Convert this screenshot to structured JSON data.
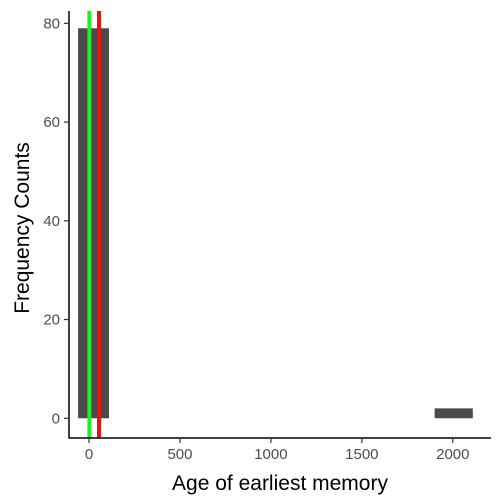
{
  "chart_data": {
    "type": "bar",
    "title": "",
    "xlabel": "Age of earliest memory",
    "ylabel": "Frequency Counts",
    "xlim": [
      -110,
      2210
    ],
    "ylim": [
      -4,
      82.5
    ],
    "x_ticks": [
      0,
      500,
      1000,
      1500,
      2000
    ],
    "y_ticks": [
      0,
      20,
      40,
      60,
      80
    ],
    "grid": false,
    "bins": [
      {
        "x0": -60,
        "x1": 110,
        "count": 79
      },
      {
        "x0": 1900,
        "x1": 2110,
        "count": 2
      }
    ],
    "vlines": [
      {
        "name": "green",
        "x": 2,
        "color": "#22ee22"
      },
      {
        "name": "red",
        "x": 55,
        "color": "#ee1111"
      }
    ],
    "bar_color": "#4a4a4a",
    "axis_color": "#000000"
  }
}
